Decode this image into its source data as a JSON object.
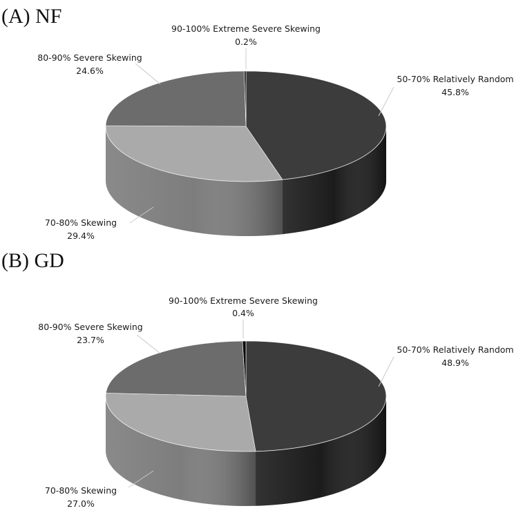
{
  "chart_data": [
    {
      "type": "pie",
      "title": "(A) NF",
      "slices": [
        {
          "category": "50-70% Relatively Random",
          "value": 45.8,
          "label": "45.8%",
          "color": "#3c3c3c",
          "side": "#1c1c1c"
        },
        {
          "category": "70-80% Skewing",
          "value": 29.4,
          "label": "29.4%",
          "color": "#aaaaaa",
          "side": "#7d7d7d"
        },
        {
          "category": "80-90% Severe Skewing",
          "value": 24.6,
          "label": "24.6%",
          "color": "#6c6c6c",
          "side": "#4a4a4a"
        },
        {
          "category": "90-100% Extreme Severe Skewing",
          "value": 0.2,
          "label": "0.2%",
          "color": "#0c0c0c",
          "side": "#000000"
        }
      ]
    },
    {
      "type": "pie",
      "title": "(B) GD",
      "slices": [
        {
          "category": "50-70% Relatively Random",
          "value": 48.9,
          "label": "48.9%",
          "color": "#3c3c3c",
          "side": "#1c1c1c"
        },
        {
          "category": "70-80% Skewing",
          "value": 27.0,
          "label": "27.0%",
          "color": "#aaaaaa",
          "side": "#7d7d7d"
        },
        {
          "category": "80-90% Severe Skewing",
          "value": 23.7,
          "label": "23.7%",
          "color": "#6c6c6c",
          "side": "#4a4a4a"
        },
        {
          "category": "90-100% Extreme Severe Skewing",
          "value": 0.4,
          "label": "0.4%",
          "color": "#0c0c0c",
          "side": "#000000"
        }
      ]
    }
  ]
}
